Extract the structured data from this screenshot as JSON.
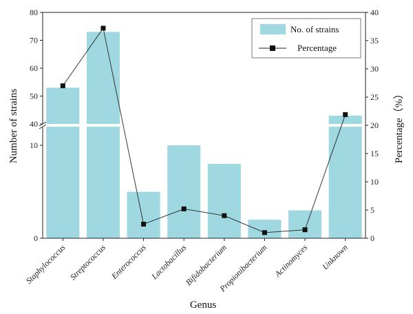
{
  "chart_data": {
    "type": "bar",
    "xlabel": "Genus",
    "ylabel_left": "Number of strains",
    "ylabel_right": "Percentage（%）",
    "categories": [
      "Staphylococcus",
      "Streptococcus",
      "Enterococcus",
      "Lactobacillus",
      "Bifidobacterium",
      "Propionibacterium",
      "Actinomyces",
      "Unknown"
    ],
    "series": [
      {
        "name": "No. of strains",
        "type": "bar",
        "axis": "left",
        "values": [
          53,
          73,
          5,
          10,
          8,
          2,
          3,
          43
        ]
      },
      {
        "name": "Percentage",
        "type": "line",
        "axis": "right",
        "values": [
          27.0,
          37.2,
          2.5,
          5.2,
          4.0,
          1.0,
          1.5,
          21.9
        ]
      }
    ],
    "left_axis": {
      "broken": true,
      "lower_range": [
        0,
        12
      ],
      "upper_range": [
        40,
        80
      ],
      "lower_ticks": [
        "0",
        "10"
      ],
      "upper_ticks": [
        "40",
        "50",
        "60",
        "70",
        "80"
      ]
    },
    "right_axis": {
      "range": [
        0,
        40
      ],
      "ticks": [
        "0",
        "5",
        "10",
        "15",
        "20",
        "25",
        "30",
        "35",
        "40"
      ]
    },
    "bar_color": "#9fd8e0",
    "line_color": "#222222",
    "legend": {
      "position": "top-right",
      "entries": [
        "No. of strains",
        "Percentage"
      ]
    },
    "grid": false
  }
}
